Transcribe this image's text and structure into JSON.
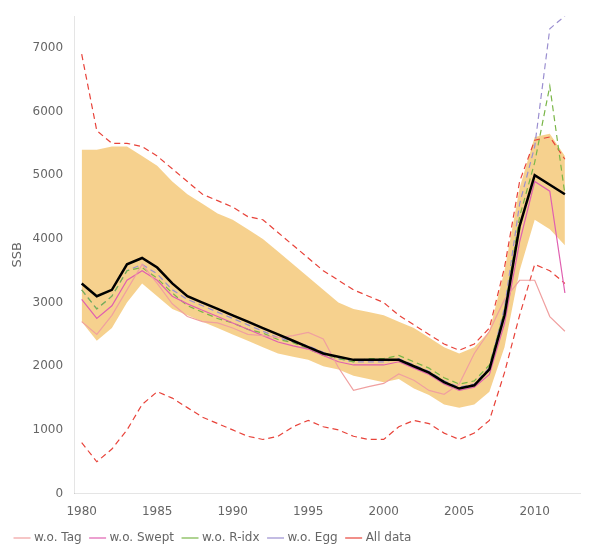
{
  "chart_data": {
    "type": "line",
    "ylabel": "SSB",
    "x": [
      1980,
      1981,
      1982,
      1983,
      1984,
      1985,
      1986,
      1987,
      1988,
      1989,
      1990,
      1991,
      1992,
      1993,
      1994,
      1995,
      1996,
      1997,
      1998,
      1999,
      2000,
      2001,
      2002,
      2003,
      2004,
      2005,
      2006,
      2007,
      2008,
      2009,
      2010,
      2011,
      2012
    ],
    "series": [
      {
        "type": "area",
        "color": "#f5c97a",
        "lower": [
          2700,
          2400,
          2600,
          3000,
          3300,
          3100,
          2900,
          2800,
          2700,
          2600,
          2500,
          2400,
          2300,
          2200,
          2150,
          2100,
          2000,
          1950,
          1850,
          1800,
          1750,
          1800,
          1650,
          1550,
          1400,
          1350,
          1400,
          1600,
          2300,
          3500,
          4300,
          4150,
          3900
        ],
        "upper": [
          5400,
          5400,
          5450,
          5450,
          5300,
          5150,
          4900,
          4700,
          4550,
          4400,
          4300,
          4150,
          4000,
          3800,
          3600,
          3400,
          3200,
          3000,
          2900,
          2850,
          2800,
          2700,
          2600,
          2450,
          2300,
          2200,
          2300,
          2550,
          3500,
          4800,
          5600,
          5650,
          5300
        ]
      },
      {
        "name": "All data",
        "color": "#e8433a",
        "line_style": "dashed",
        "values": [
          6900,
          5700,
          5500,
          5500,
          5450,
          5300,
          5100,
          4900,
          4700,
          4600,
          4500,
          4350,
          4300,
          4100,
          3900,
          3700,
          3500,
          3350,
          3200,
          3100,
          3000,
          2800,
          2650,
          2500,
          2350,
          2250,
          2350,
          2600,
          3550,
          4900,
          5550,
          5600,
          5250
        ]
      },
      {
        "color": "#e8433a",
        "line_style": "dashed",
        "values": [
          800,
          500,
          700,
          1000,
          1400,
          1600,
          1500,
          1350,
          1200,
          1100,
          1000,
          900,
          850,
          900,
          1050,
          1150,
          1050,
          1000,
          900,
          850,
          850,
          1050,
          1150,
          1100,
          950,
          850,
          950,
          1150,
          1900,
          2800,
          3600,
          3500,
          3300
        ]
      },
      {
        "name": "w.o. Egg",
        "color": "#9b8fd0",
        "line_style": "dashed",
        "values": [
          3200,
          2900,
          3100,
          3500,
          3600,
          3450,
          3200,
          3050,
          2950,
          2850,
          2750,
          2650,
          2550,
          2450,
          2380,
          2320,
          2220,
          2120,
          2070,
          2070,
          2070,
          2120,
          2020,
          1920,
          1770,
          1670,
          1720,
          1980,
          2920,
          4550,
          5450,
          7300,
          7500
        ]
      },
      {
        "name": "w.o. R-idx",
        "color": "#7ab648",
        "line_style": "dashed",
        "values": [
          3200,
          2900,
          3100,
          3500,
          3550,
          3380,
          3150,
          2950,
          2850,
          2750,
          2680,
          2580,
          2520,
          2420,
          2370,
          2270,
          2170,
          2120,
          2070,
          2120,
          2120,
          2170,
          2070,
          1970,
          1820,
          1720,
          1770,
          2020,
          2870,
          4350,
          5200,
          6400,
          4700
        ]
      },
      {
        "name": "w.o. Swept",
        "color": "#e060b0",
        "line_style": "solid",
        "values": [
          3050,
          2750,
          2950,
          3350,
          3500,
          3350,
          3100,
          2980,
          2880,
          2780,
          2680,
          2580,
          2480,
          2380,
          2320,
          2270,
          2170,
          2070,
          2020,
          2020,
          2020,
          2070,
          1970,
          1870,
          1720,
          1620,
          1670,
          1870,
          2670,
          3950,
          4900,
          4750,
          3150
        ]
      },
      {
        "name": "w.o. Tag",
        "color": "#f0a0a0",
        "line_style": "solid",
        "values": [
          2700,
          2500,
          2800,
          3200,
          3600,
          3300,
          2980,
          2780,
          2700,
          2680,
          2600,
          2500,
          2480,
          2450,
          2480,
          2530,
          2430,
          1980,
          1620,
          1680,
          1730,
          1880,
          1780,
          1620,
          1560,
          1720,
          2200,
          2550,
          3050,
          3350,
          3350,
          2780,
          2550
        ]
      },
      {
        "color": "#000000",
        "line_style": "solid",
        "values": [
          3300,
          3100,
          3200,
          3600,
          3700,
          3550,
          3300,
          3100,
          3000,
          2900,
          2800,
          2700,
          2600,
          2500,
          2400,
          2300,
          2200,
          2150,
          2100,
          2100,
          2100,
          2100,
          2000,
          1900,
          1750,
          1650,
          1700,
          1950,
          2800,
          4200,
          5000,
          4850,
          4700
        ]
      }
    ],
    "xlim": [
      1979.5,
      2013
    ],
    "ylim": [
      0,
      7500
    ],
    "xticks": [
      1980,
      1985,
      1990,
      1995,
      2000,
      2005,
      2010
    ],
    "yticks": [
      0,
      1000,
      2000,
      3000,
      4000,
      5000,
      6000,
      7000
    ],
    "grid": false,
    "legend": "lower left"
  }
}
